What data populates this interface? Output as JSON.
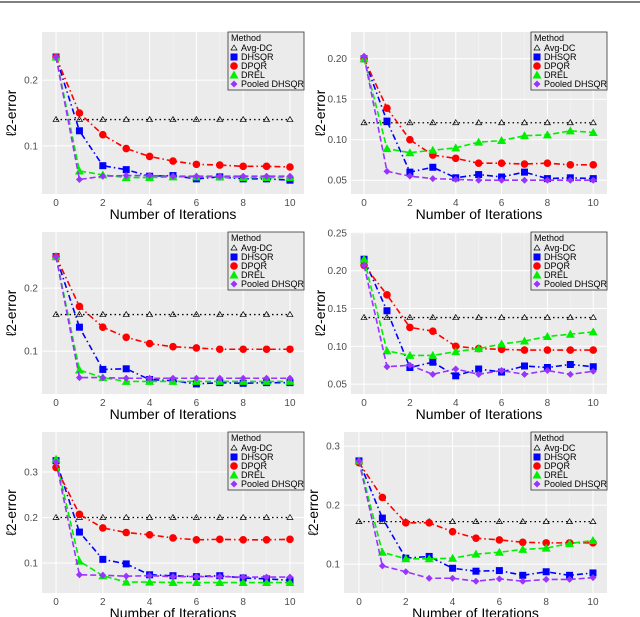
{
  "chart_data": [
    {
      "type": "line",
      "panel": "top-left",
      "xlabel": "Number of Iterations",
      "ylabel": "ℓ2-error",
      "xlim": [
        -0.6,
        10.6
      ],
      "ylim": [
        0.027,
        0.273
      ],
      "x_ticks": [
        "0",
        "2",
        "4",
        "6",
        "8",
        "10"
      ],
      "y_ticks": [
        "0.1",
        "0.2"
      ],
      "x": [
        0,
        1,
        2,
        3,
        4,
        5,
        6,
        7,
        8,
        9,
        10
      ],
      "legend_title": "Method",
      "legend_placement": "top-right",
      "grid": true,
      "series": [
        {
          "name": "Avg-DC",
          "values": [
            0.14,
            0.14,
            0.14,
            0.14,
            0.14,
            0.14,
            0.14,
            0.14,
            0.14,
            0.14,
            0.14
          ]
        },
        {
          "name": "DHSQR",
          "values": [
            0.235,
            0.123,
            0.07,
            0.064,
            0.054,
            0.055,
            0.05,
            0.053,
            0.05,
            0.05,
            0.048
          ]
        },
        {
          "name": "DPQR",
          "values": [
            0.235,
            0.15,
            0.117,
            0.096,
            0.084,
            0.077,
            0.072,
            0.071,
            0.069,
            0.069,
            0.068
          ]
        },
        {
          "name": "DREL",
          "values": [
            0.235,
            0.062,
            0.056,
            0.052,
            0.052,
            0.053,
            0.053,
            0.053,
            0.052,
            0.052,
            0.052
          ]
        },
        {
          "name": "Pooled DHSQR",
          "values": [
            0.235,
            0.049,
            0.054,
            0.055,
            0.055,
            0.054,
            0.054,
            0.054,
            0.054,
            0.054,
            0.054
          ]
        }
      ]
    },
    {
      "type": "line",
      "panel": "top-right",
      "xlabel": "Number of Iterations",
      "ylabel": "ℓ2-error",
      "xlim": [
        -0.57,
        10.6
      ],
      "ylim": [
        0.033,
        0.233
      ],
      "x_ticks": [
        "0",
        "2",
        "4",
        "6",
        "8",
        "10"
      ],
      "y_ticks": [
        "0.05",
        "0.10",
        "0.15",
        "0.20"
      ],
      "x": [
        0,
        1,
        2,
        3,
        4,
        5,
        6,
        7,
        8,
        9,
        10
      ],
      "legend_title": "Method",
      "legend_placement": "top-right",
      "grid": true,
      "series": [
        {
          "name": "Avg-DC",
          "values": [
            0.121,
            0.121,
            0.121,
            0.121,
            0.121,
            0.121,
            0.121,
            0.121,
            0.121,
            0.121,
            0.121
          ]
        },
        {
          "name": "DHSQR",
          "values": [
            0.2,
            0.123,
            0.06,
            0.066,
            0.053,
            0.057,
            0.054,
            0.06,
            0.052,
            0.053,
            0.052
          ]
        },
        {
          "name": "DPQR",
          "values": [
            0.2,
            0.139,
            0.1,
            0.081,
            0.077,
            0.071,
            0.071,
            0.07,
            0.071,
            0.069,
            0.069
          ]
        },
        {
          "name": "DREL",
          "values": [
            0.2,
            0.089,
            0.084,
            0.087,
            0.09,
            0.097,
            0.099,
            0.105,
            0.106,
            0.111,
            0.109
          ]
        },
        {
          "name": "Pooled DHSQR",
          "values": [
            0.203,
            0.061,
            0.055,
            0.052,
            0.051,
            0.05,
            0.05,
            0.05,
            0.05,
            0.05,
            0.05
          ]
        }
      ]
    },
    {
      "type": "line",
      "panel": "middle-left",
      "xlabel": "Number of Iterations",
      "ylabel": "ℓ2-error",
      "xlim": [
        -0.6,
        10.6
      ],
      "ylim": [
        0.032,
        0.289
      ],
      "x_ticks": [
        "0",
        "2",
        "4",
        "6",
        "8",
        "10"
      ],
      "y_ticks": [
        "0.1",
        "0.2"
      ],
      "x": [
        0,
        1,
        2,
        3,
        4,
        5,
        6,
        7,
        8,
        9,
        10
      ],
      "legend_title": "Method",
      "legend_placement": "top-right",
      "grid": true,
      "series": [
        {
          "name": "Avg-DC",
          "values": [
            0.158,
            0.158,
            0.158,
            0.158,
            0.158,
            0.158,
            0.158,
            0.158,
            0.158,
            0.158,
            0.158
          ]
        },
        {
          "name": "DHSQR",
          "values": [
            0.25,
            0.138,
            0.071,
            0.072,
            0.055,
            0.053,
            0.048,
            0.05,
            0.049,
            0.05,
            0.05
          ]
        },
        {
          "name": "DPQR",
          "values": [
            0.25,
            0.171,
            0.138,
            0.122,
            0.112,
            0.107,
            0.105,
            0.103,
            0.103,
            0.103,
            0.103
          ]
        },
        {
          "name": "DREL",
          "values": [
            0.25,
            0.07,
            0.058,
            0.052,
            0.052,
            0.052,
            0.052,
            0.052,
            0.052,
            0.052,
            0.052
          ]
        },
        {
          "name": "Pooled DHSQR",
          "values": [
            0.25,
            0.058,
            0.058,
            0.057,
            0.057,
            0.057,
            0.057,
            0.057,
            0.057,
            0.057,
            0.057
          ]
        }
      ]
    },
    {
      "type": "line",
      "panel": "middle-right",
      "xlabel": "Number of Iterations",
      "ylabel": "ℓ2-error",
      "xlim": [
        -0.57,
        10.6
      ],
      "ylim": [
        0.037,
        0.251
      ],
      "x_ticks": [
        "0",
        "2",
        "4",
        "6",
        "8",
        "10"
      ],
      "y_ticks": [
        "0.05",
        "0.10",
        "0.15",
        "0.20",
        "0.25"
      ],
      "x": [
        0,
        1,
        2,
        3,
        4,
        5,
        6,
        7,
        8,
        9,
        10
      ],
      "legend_title": "Method",
      "legend_placement": "top-right",
      "grid": true,
      "series": [
        {
          "name": "Avg-DC",
          "values": [
            0.138,
            0.138,
            0.138,
            0.138,
            0.138,
            0.138,
            0.138,
            0.138,
            0.138,
            0.138,
            0.138
          ]
        },
        {
          "name": "DHSQR",
          "values": [
            0.215,
            0.147,
            0.072,
            0.079,
            0.061,
            0.07,
            0.066,
            0.074,
            0.072,
            0.076,
            0.073
          ]
        },
        {
          "name": "DPQR",
          "values": [
            0.207,
            0.168,
            0.125,
            0.12,
            0.1,
            0.097,
            0.096,
            0.095,
            0.095,
            0.095,
            0.095
          ]
        },
        {
          "name": "DREL",
          "values": [
            0.215,
            0.094,
            0.088,
            0.088,
            0.093,
            0.097,
            0.103,
            0.107,
            0.113,
            0.116,
            0.119
          ]
        },
        {
          "name": "Pooled DHSQR",
          "values": [
            0.207,
            0.073,
            0.075,
            0.063,
            0.07,
            0.063,
            0.068,
            0.063,
            0.068,
            0.063,
            0.067
          ]
        }
      ]
    },
    {
      "type": "line",
      "panel": "bottom-left",
      "xlabel": "Number of Iterations",
      "ylabel": "ℓ2-error",
      "xlim": [
        -0.6,
        10.6
      ],
      "ylim": [
        0.034,
        0.388
      ],
      "x_ticks": [
        "0",
        "2",
        "4",
        "6",
        "8",
        "10"
      ],
      "y_ticks": [
        "0.1",
        "0.2",
        "0.3"
      ],
      "x": [
        0,
        1,
        2,
        3,
        4,
        5,
        6,
        7,
        8,
        9,
        10
      ],
      "legend_title": "Method",
      "legend_placement": "top-right",
      "grid": true,
      "series": [
        {
          "name": "Avg-DC",
          "values": [
            0.2,
            0.2,
            0.2,
            0.2,
            0.2,
            0.2,
            0.2,
            0.2,
            0.2,
            0.2,
            0.2
          ]
        },
        {
          "name": "DHSQR",
          "values": [
            0.325,
            0.168,
            0.108,
            0.098,
            0.074,
            0.072,
            0.07,
            0.072,
            0.067,
            0.065,
            0.062
          ]
        },
        {
          "name": "DPQR",
          "values": [
            0.31,
            0.207,
            0.177,
            0.167,
            0.162,
            0.155,
            0.151,
            0.152,
            0.151,
            0.151,
            0.152
          ]
        },
        {
          "name": "DREL",
          "values": [
            0.328,
            0.104,
            0.072,
            0.058,
            0.058,
            0.057,
            0.057,
            0.057,
            0.057,
            0.057,
            0.057
          ]
        },
        {
          "name": "Pooled DHSQR",
          "values": [
            0.322,
            0.074,
            0.073,
            0.071,
            0.072,
            0.07,
            0.07,
            0.07,
            0.069,
            0.069,
            0.069
          ]
        }
      ]
    },
    {
      "type": "line",
      "panel": "bottom-right",
      "xlabel": "Number of Iterations",
      "ylabel": "ℓ2-error",
      "xlim": [
        -0.64,
        10.6
      ],
      "ylim": [
        0.051,
        0.324
      ],
      "x_ticks": [
        "0",
        "2",
        "4",
        "6",
        "8",
        "10"
      ],
      "y_ticks": [
        "0.1",
        "0.2",
        "0.3"
      ],
      "x": [
        0,
        1,
        2,
        3,
        4,
        5,
        6,
        7,
        8,
        9,
        10
      ],
      "legend_title": "Method",
      "legend_placement": "top-right",
      "grid": true,
      "series": [
        {
          "name": "Avg-DC",
          "values": [
            0.172,
            0.172,
            0.172,
            0.172,
            0.172,
            0.172,
            0.172,
            0.172,
            0.172,
            0.172,
            0.172
          ]
        },
        {
          "name": "DHSQR",
          "values": [
            0.275,
            0.178,
            0.11,
            0.113,
            0.093,
            0.088,
            0.089,
            0.081,
            0.087,
            0.081,
            0.085
          ]
        },
        {
          "name": "DPQR",
          "values": [
            0.272,
            0.213,
            0.17,
            0.17,
            0.155,
            0.144,
            0.141,
            0.137,
            0.136,
            0.136,
            0.136
          ]
        },
        {
          "name": "DREL",
          "values": [
            0.275,
            0.12,
            0.109,
            0.109,
            0.11,
            0.117,
            0.12,
            0.125,
            0.127,
            0.135,
            0.14
          ]
        },
        {
          "name": "Pooled DHSQR",
          "values": [
            0.275,
            0.097,
            0.087,
            0.076,
            0.076,
            0.071,
            0.075,
            0.071,
            0.074,
            0.074,
            0.077
          ]
        }
      ]
    }
  ],
  "series_styles": {
    "Avg-DC": {
      "color": "#000000",
      "marker": "open-triangle",
      "line": "dotted"
    },
    "DHSQR": {
      "color": "#0000ff",
      "marker": "square",
      "line": "dash-dot"
    },
    "DPQR": {
      "color": "#ff0000",
      "marker": "circle",
      "line": "dash-dot"
    },
    "DREL": {
      "color": "#00ee00",
      "marker": "triangle",
      "line": "dashed"
    },
    "Pooled DHSQR": {
      "color": "#9933ff",
      "marker": "diamond",
      "line": "dashed"
    }
  },
  "panel_background": "#ebebeb"
}
